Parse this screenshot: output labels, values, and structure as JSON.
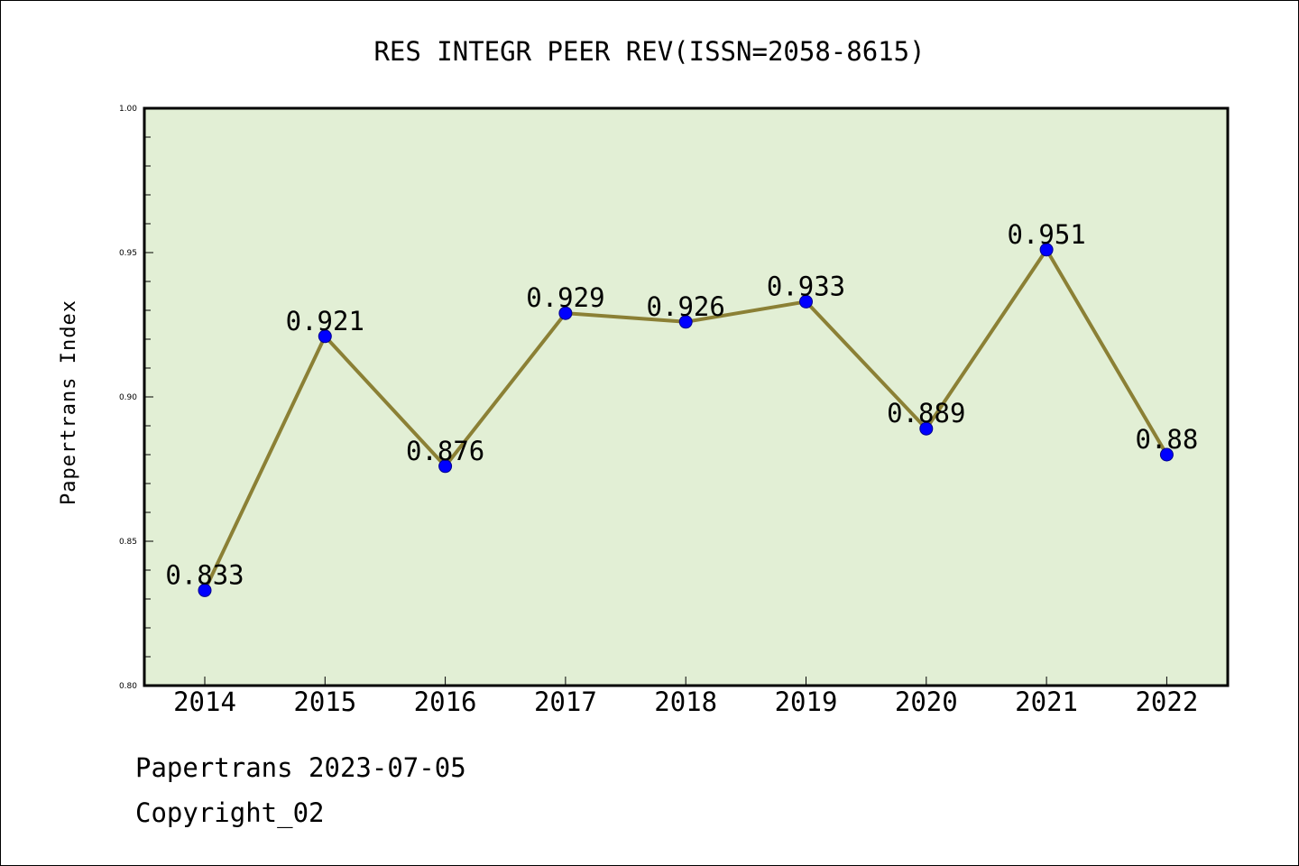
{
  "chart_data": {
    "type": "line",
    "title": "RES INTEGR PEER REV(ISSN=2058-8615)",
    "xlabel": "",
    "ylabel": "Papertrans Index",
    "categories": [
      "2014",
      "2015",
      "2016",
      "2017",
      "2018",
      "2019",
      "2020",
      "2021",
      "2022"
    ],
    "series": [
      {
        "values": [
          0.833,
          0.921,
          0.876,
          0.929,
          0.926,
          0.933,
          0.889,
          0.951,
          0.88
        ]
      }
    ],
    "data_labels": [
      "0.833",
      "0.921",
      "0.876",
      "0.929",
      "0.926",
      "0.933",
      "0.889",
      "0.951",
      "0.88"
    ],
    "ylim": [
      0.8,
      1.0
    ],
    "yticks": [
      "0.80",
      "0.85",
      "0.90",
      "0.95",
      "1.00"
    ],
    "grid": false,
    "legend": "none",
    "colors": {
      "plot_background": "#e2efd5",
      "line": "#8b8035",
      "marker": "#0000ff",
      "marker_edge": "#00008b"
    }
  },
  "footer": {
    "line1": "Papertrans 2023-07-05",
    "line2": "Copyright_02"
  }
}
